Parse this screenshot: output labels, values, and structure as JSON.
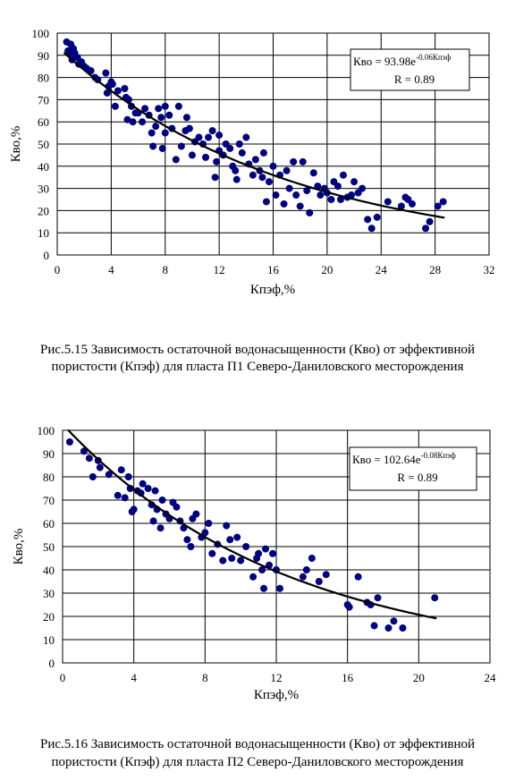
{
  "chart_data": [
    {
      "type": "scatter",
      "color": "#000080",
      "grid": true,
      "x_label": "Кпэф,%",
      "y_label": "Кво,%",
      "equation": "Кво = 93.98e",
      "equation_exponent": "-0.06Кпэф",
      "r_label": "R = 0.89",
      "trendline": {
        "a": 93.98,
        "b": -0.06,
        "x": [
          0.5,
          28.7
        ]
      },
      "xlim": [
        0,
        32
      ],
      "xticks": [
        0,
        4,
        8,
        12,
        16,
        20,
        24,
        28,
        32
      ],
      "ylim": [
        0,
        100
      ],
      "yticks": [
        0,
        10,
        20,
        30,
        40,
        50,
        60,
        70,
        80,
        90,
        100
      ],
      "x": [
        0.7,
        0.8,
        1,
        1,
        1.1,
        1.2,
        1.3,
        1.5,
        1.6,
        1.8,
        2,
        2.2,
        2.5,
        2.8,
        3,
        3.6,
        3.7,
        3.8,
        4,
        4.1,
        4.3,
        4.5,
        5,
        5.1,
        5.2,
        5.3,
        5.5,
        5.6,
        5.8,
        6,
        6.3,
        6.5,
        6.8,
        7,
        7.1,
        7.3,
        7.5,
        7.7,
        7.8,
        8,
        8,
        8.3,
        8.5,
        8.8,
        9,
        9.2,
        9.5,
        9.6,
        9.8,
        10,
        10.2,
        10.5,
        10.8,
        11,
        11.2,
        11.5,
        11.7,
        11.8,
        12,
        12,
        12.3,
        12.5,
        12.8,
        13,
        13.2,
        13.3,
        13.5,
        13.7,
        14,
        14.2,
        14.5,
        14.7,
        15,
        15.2,
        15.3,
        15.5,
        15.7,
        16,
        16.2,
        16.5,
        16.8,
        17,
        17.2,
        17.5,
        17.7,
        18,
        18.2,
        18.5,
        18.7,
        19,
        19.3,
        19.5,
        19.8,
        20,
        20.3,
        20.5,
        20.8,
        21,
        21.2,
        21.5,
        21.8,
        22,
        22.3,
        22.6,
        23,
        23.3,
        23.7,
        24.5,
        25.5,
        25.8,
        26,
        26.3,
        27.3,
        27.6,
        28.2,
        28.6
      ],
      "values": [
        96,
        92,
        95,
        90,
        88,
        93,
        91,
        89,
        86,
        87,
        85,
        84,
        83,
        80,
        79,
        82,
        73,
        76,
        78,
        77,
        67,
        74,
        75,
        71,
        61,
        70,
        67,
        60,
        64,
        64,
        60,
        66,
        63,
        55,
        49,
        58,
        66,
        62,
        48,
        67,
        55,
        63,
        57,
        43,
        67,
        49,
        56,
        62,
        57,
        45,
        51,
        53,
        50,
        44,
        53,
        56,
        35,
        42,
        54,
        47,
        45,
        50,
        48,
        40,
        38,
        34,
        50,
        46,
        53,
        41,
        36,
        43,
        38,
        35,
        46,
        24,
        33,
        40,
        27,
        36,
        23,
        38,
        30,
        42,
        27,
        22,
        42,
        29,
        19,
        37,
        31,
        27,
        30,
        28,
        25,
        33,
        31,
        25,
        36,
        26,
        27,
        33,
        28,
        30,
        16,
        12,
        17,
        24,
        22,
        26,
        25,
        23,
        12,
        15,
        22,
        24
      ],
      "caption": [
        "Рис.5.15  Зависимость остаточной водонасыщенности (Кво) от эффективной",
        "пористости (Кпэф) для пласта П1 Северо-Даниловского месторождения"
      ]
    },
    {
      "type": "scatter",
      "color": "#000080",
      "grid": true,
      "x_label": "Кпэф,%",
      "y_label": "Кво,%",
      "equation": "Кво = 102.64e",
      "equation_exponent": "-0.08Кпэф",
      "r_label": "R = 0.89",
      "trendline": {
        "a": 102.64,
        "b": -0.08,
        "x": [
          0.3,
          21
        ]
      },
      "xlim": [
        0,
        24
      ],
      "xticks": [
        0,
        4,
        8,
        12,
        16,
        20,
        24
      ],
      "ylim": [
        0,
        100
      ],
      "yticks": [
        0,
        10,
        20,
        30,
        40,
        50,
        60,
        70,
        80,
        90,
        100
      ],
      "x": [
        0.4,
        1.2,
        1.5,
        1.7,
        2,
        2.1,
        2.6,
        3.1,
        3.3,
        3.5,
        3.7,
        3.8,
        3.9,
        4,
        4.2,
        4.4,
        4.5,
        4.8,
        5,
        5.1,
        5.2,
        5.3,
        5.5,
        5.6,
        5.8,
        6,
        6.2,
        6.4,
        6.6,
        6.8,
        7,
        7.2,
        7.3,
        7.5,
        7.8,
        8,
        8.2,
        8.4,
        8.7,
        9,
        9.2,
        9.4,
        9.5,
        9.8,
        10,
        10.3,
        10.7,
        10.9,
        11,
        11.2,
        11.3,
        11.4,
        11.6,
        11.8,
        12,
        12.2,
        13.5,
        13.7,
        14,
        14.4,
        14.8,
        16,
        16.1,
        16.6,
        17.1,
        17.3,
        17.5,
        17.7,
        18.3,
        18.6,
        19.1,
        20.9
      ],
      "values": [
        95,
        91,
        88,
        80,
        87,
        84,
        81,
        72,
        83,
        71,
        80,
        75,
        65,
        66,
        74,
        73,
        77,
        75,
        68,
        61,
        74,
        66,
        58,
        70,
        64,
        62,
        69,
        67,
        61,
        58,
        53,
        50,
        62,
        64,
        54,
        56,
        60,
        47,
        51,
        44,
        59,
        53,
        45,
        54,
        44,
        50,
        37,
        45,
        47,
        40,
        32,
        49,
        42,
        47,
        40,
        32,
        37,
        40,
        45,
        35,
        38,
        25,
        24,
        37,
        26,
        25,
        16,
        28,
        15,
        18,
        15,
        28
      ],
      "caption": [
        "Рис.5.16  Зависимость остаточной водонасыщенности (Кво) от эффективной",
        "пористости (Кпэф) для пласта П2 Северо-Даниловского месторождения"
      ]
    }
  ]
}
